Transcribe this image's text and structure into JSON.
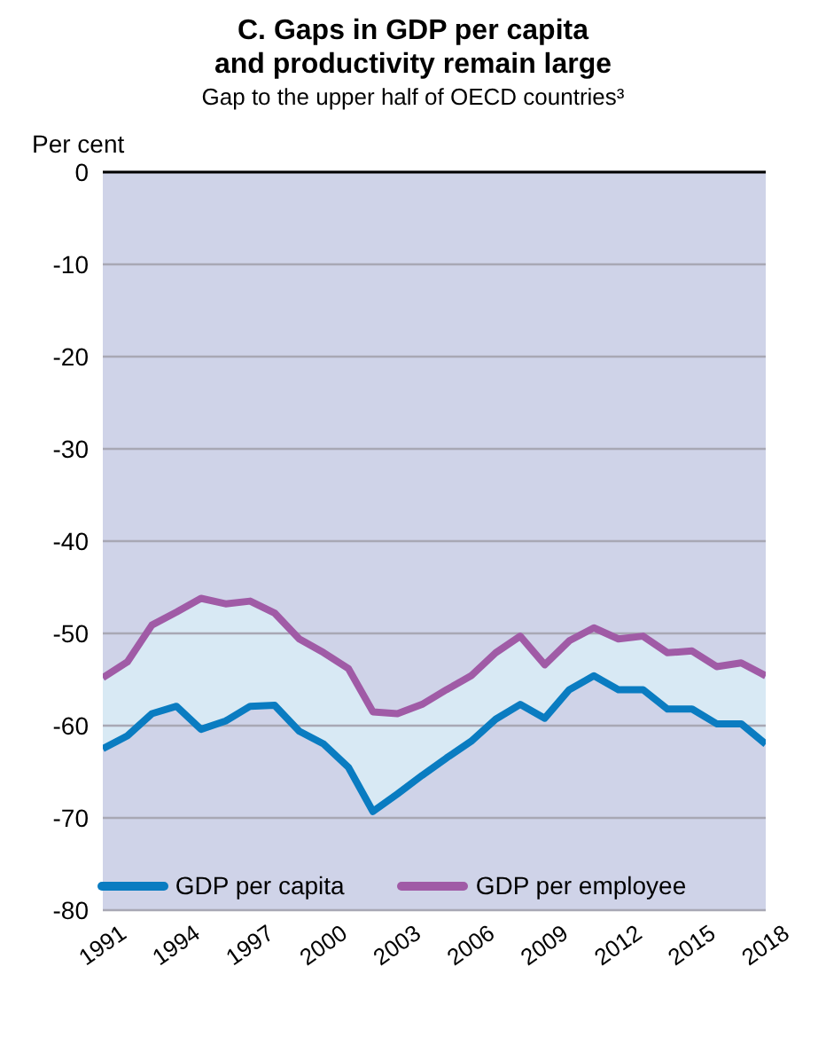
{
  "chart_data": {
    "type": "line",
    "title": "C. Gaps in GDP per capita\nand productivity remain large",
    "subtitle": "Gap to the upper half of OECD countries³",
    "ylabel": "Per cent",
    "x": [
      1991,
      1992,
      1993,
      1994,
      1995,
      1996,
      1997,
      1998,
      1999,
      2000,
      2001,
      2002,
      2003,
      2004,
      2005,
      2006,
      2007,
      2008,
      2009,
      2010,
      2011,
      2012,
      2013,
      2014,
      2015,
      2016,
      2017,
      2018
    ],
    "series": [
      {
        "name": "GDP per capita",
        "color": "#0a7cc1",
        "values": [
          -62.5,
          -61.1,
          -58.7,
          -57.9,
          -60.4,
          -59.5,
          -57.9,
          -57.8,
          -60.6,
          -62.0,
          -64.5,
          -69.3,
          -67.4,
          -65.4,
          -63.5,
          -61.7,
          -59.3,
          -57.7,
          -59.2,
          -56.1,
          -54.6,
          -56.1,
          -56.1,
          -58.2,
          -58.2,
          -59.8,
          -59.8,
          -62.0
        ]
      },
      {
        "name": "GDP per employee",
        "color": "#a05ba6",
        "values": [
          -54.8,
          -53.1,
          -49.1,
          -47.7,
          -46.2,
          -46.8,
          -46.5,
          -47.8,
          -50.6,
          -52.1,
          -53.8,
          -58.5,
          -58.7,
          -57.7,
          -56.1,
          -54.6,
          -52.1,
          -50.3,
          -53.4,
          -50.8,
          -49.4,
          -50.6,
          -50.3,
          -52.1,
          -51.9,
          -53.6,
          -53.2,
          -54.6
        ],
        "lower": [
          -62.5,
          -61.1,
          -58.7,
          -57.9,
          -60.4,
          -59.5,
          -57.9,
          -57.8,
          -60.6,
          -62.0,
          -64.5,
          -69.3,
          -67.4,
          -65.4,
          -63.5,
          -61.7,
          -59.3,
          -57.7,
          -59.2,
          -56.1,
          -54.6,
          -56.1,
          -56.1,
          -58.2,
          -58.2,
          -59.8,
          -59.8,
          -62.0
        ],
        "upper": [
          -54.8,
          -53.1,
          -49.1,
          -47.7,
          -46.2,
          -46.8,
          -46.5,
          -47.8,
          -50.6,
          -52.1,
          -53.8,
          -58.5,
          -58.7,
          -57.7,
          -56.1,
          -54.6,
          -52.1,
          -50.3,
          -53.4,
          -50.8,
          -49.4,
          -50.6,
          -50.3,
          -52.1,
          -51.9,
          -53.6,
          -53.2,
          -54.6
        ]
      }
    ],
    "bands": [
      {
        "axis": "y",
        "from": -80,
        "to": 0,
        "color": "#cfd3e8"
      }
    ],
    "xlim": [
      1991,
      2018
    ],
    "xticks": [
      1991,
      1994,
      1997,
      2000,
      2003,
      2006,
      2009,
      2012,
      2015,
      2018
    ],
    "ylim": [
      -80,
      0
    ],
    "yticks": [
      -80,
      -70,
      -60,
      -50,
      -40,
      -30,
      -20,
      -10,
      0
    ],
    "grid": "y",
    "legend": "bottom",
    "marker": "none",
    "line_style": "solid"
  }
}
